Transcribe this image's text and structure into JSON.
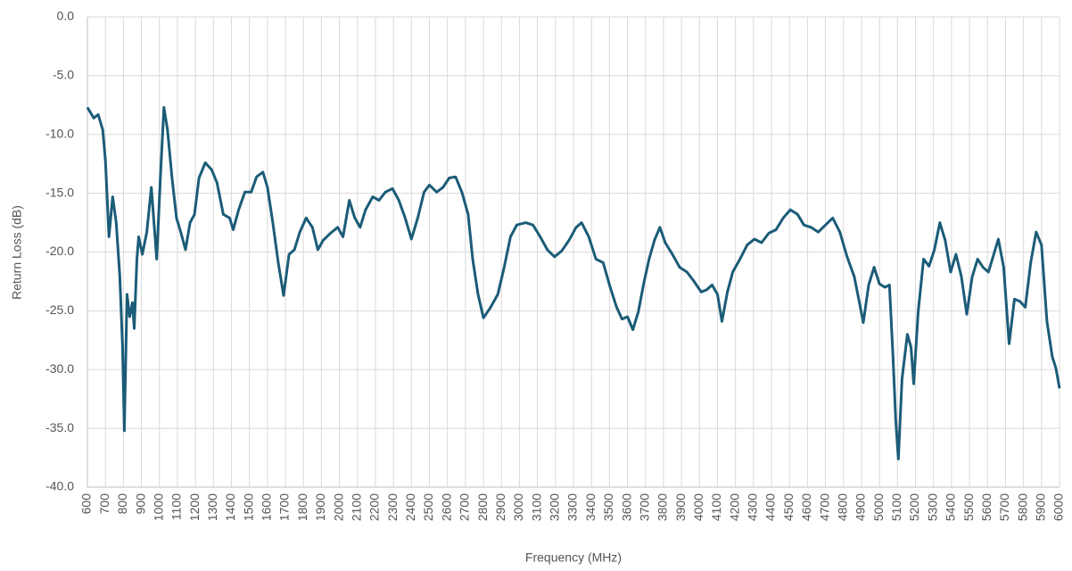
{
  "chart_data": {
    "type": "line",
    "x_label": "Frequency (MHz)",
    "y_label": "Return Loss (dB)",
    "color": "#1b5c78",
    "grid": true,
    "xlim": [
      600,
      6000
    ],
    "ylim": [
      -40,
      0
    ],
    "xticks": [
      600,
      700,
      800,
      900,
      1000,
      1100,
      1200,
      1300,
      1400,
      1500,
      1600,
      1700,
      1800,
      1900,
      2000,
      2100,
      2200,
      2300,
      2400,
      2500,
      2600,
      2700,
      2800,
      2900,
      3000,
      3100,
      3200,
      3300,
      3400,
      3500,
      3600,
      3700,
      3800,
      3900,
      4000,
      4100,
      4200,
      4300,
      4400,
      4500,
      4600,
      4700,
      4800,
      4900,
      5000,
      5100,
      5200,
      5300,
      5400,
      5500,
      5600,
      5700,
      5800,
      5900,
      6000
    ],
    "yticks": [
      {
        "value": 0,
        "label": "0.0"
      },
      {
        "value": -5,
        "label": "-5.0"
      },
      {
        "value": -10,
        "label": "-10.0"
      },
      {
        "value": -15,
        "label": "-15.0"
      },
      {
        "value": -20,
        "label": "-20.0"
      },
      {
        "value": -25,
        "label": "-25.0"
      },
      {
        "value": -30,
        "label": "-30.0"
      },
      {
        "value": -35,
        "label": "-35.0"
      },
      {
        "value": -40,
        "label": "-40.0"
      }
    ],
    "x": [
      600,
      635,
      660,
      685,
      700,
      720,
      740,
      760,
      780,
      795,
      805,
      820,
      835,
      850,
      860,
      875,
      885,
      905,
      930,
      955,
      985,
      1005,
      1025,
      1045,
      1070,
      1095,
      1120,
      1145,
      1170,
      1195,
      1220,
      1255,
      1290,
      1320,
      1355,
      1390,
      1410,
      1440,
      1475,
      1510,
      1540,
      1575,
      1600,
      1630,
      1660,
      1690,
      1720,
      1750,
      1780,
      1815,
      1850,
      1880,
      1910,
      1950,
      1990,
      2020,
      2055,
      2085,
      2115,
      2145,
      2185,
      2220,
      2255,
      2295,
      2330,
      2365,
      2400,
      2435,
      2470,
      2500,
      2540,
      2575,
      2610,
      2645,
      2680,
      2715,
      2740,
      2770,
      2800,
      2840,
      2880,
      2915,
      2950,
      2985,
      3035,
      3075,
      3115,
      3155,
      3195,
      3235,
      3275,
      3315,
      3345,
      3385,
      3425,
      3465,
      3500,
      3540,
      3570,
      3600,
      3630,
      3660,
      3690,
      3720,
      3750,
      3780,
      3810,
      3850,
      3890,
      3930,
      3970,
      4010,
      4040,
      4070,
      4100,
      4125,
      4155,
      4185,
      4225,
      4265,
      4305,
      4345,
      4385,
      4425,
      4465,
      4505,
      4545,
      4580,
      4620,
      4660,
      4700,
      4740,
      4780,
      4820,
      4860,
      4890,
      4910,
      4940,
      4970,
      5000,
      5030,
      5055,
      5075,
      5090,
      5105,
      5125,
      5155,
      5175,
      5190,
      5215,
      5245,
      5275,
      5305,
      5335,
      5365,
      5395,
      5425,
      5455,
      5485,
      5515,
      5545,
      5575,
      5605,
      5635,
      5660,
      5690,
      5720,
      5750,
      5780,
      5810,
      5840,
      5870,
      5900,
      5930,
      5960,
      5980,
      6000
    ],
    "values": [
      -7.7,
      -8.6,
      -8.3,
      -9.6,
      -12.2,
      -18.7,
      -15.3,
      -17.5,
      -22,
      -28,
      -35.2,
      -23.6,
      -25.5,
      -24.3,
      -26.5,
      -20.6,
      -18.7,
      -20.2,
      -18.3,
      -14.5,
      -20.6,
      -13.7,
      -7.7,
      -9.6,
      -13.7,
      -17.1,
      -18.4,
      -19.8,
      -17.5,
      -16.8,
      -13.7,
      -12.4,
      -13,
      -14.1,
      -16.8,
      -17.1,
      -18.1,
      -16.4,
      -14.9,
      -14.9,
      -13.6,
      -13.2,
      -14.5,
      -17.5,
      -20.9,
      -23.7,
      -20.2,
      -19.8,
      -18.3,
      -17.1,
      -17.9,
      -19.8,
      -19,
      -18.4,
      -17.9,
      -18.7,
      -15.6,
      -17.1,
      -17.9,
      -16.4,
      -15.3,
      -15.6,
      -14.9,
      -14.6,
      -15.6,
      -17.1,
      -18.9,
      -17.1,
      -14.9,
      -14.3,
      -14.9,
      -14.5,
      -13.7,
      -13.6,
      -14.9,
      -16.8,
      -20.6,
      -23.6,
      -25.6,
      -24.7,
      -23.6,
      -21.3,
      -18.7,
      -17.7,
      -17.5,
      -17.7,
      -18.7,
      -19.8,
      -20.4,
      -19.9,
      -19,
      -17.9,
      -17.5,
      -18.7,
      -20.6,
      -20.9,
      -22.8,
      -24.7,
      -25.7,
      -25.5,
      -26.6,
      -25.1,
      -22.7,
      -20.6,
      -19,
      -17.9,
      -19.2,
      -20.2,
      -21.3,
      -21.7,
      -22.5,
      -23.4,
      -23.2,
      -22.8,
      -23.6,
      -25.9,
      -23.4,
      -21.7,
      -20.6,
      -19.4,
      -18.9,
      -19.2,
      -18.4,
      -18.1,
      -17.1,
      -16.4,
      -16.8,
      -17.7,
      -17.9,
      -18.3,
      -17.7,
      -17.1,
      -18.3,
      -20.4,
      -22.1,
      -24.4,
      -26,
      -22.8,
      -21.3,
      -22.7,
      -23,
      -22.8,
      -28.9,
      -34.2,
      -37.6,
      -30.8,
      -27,
      -28.1,
      -31.2,
      -25.1,
      -20.6,
      -21.2,
      -19.8,
      -17.5,
      -19,
      -21.7,
      -20.2,
      -22.1,
      -25.3,
      -22.1,
      -20.6,
      -21.3,
      -21.7,
      -20.2,
      -18.9,
      -21.3,
      -27.8,
      -24,
      -24.2,
      -24.7,
      -20.9,
      -18.3,
      -19.4,
      -25.9,
      -28.9,
      -29.9,
      -31.6
    ]
  }
}
